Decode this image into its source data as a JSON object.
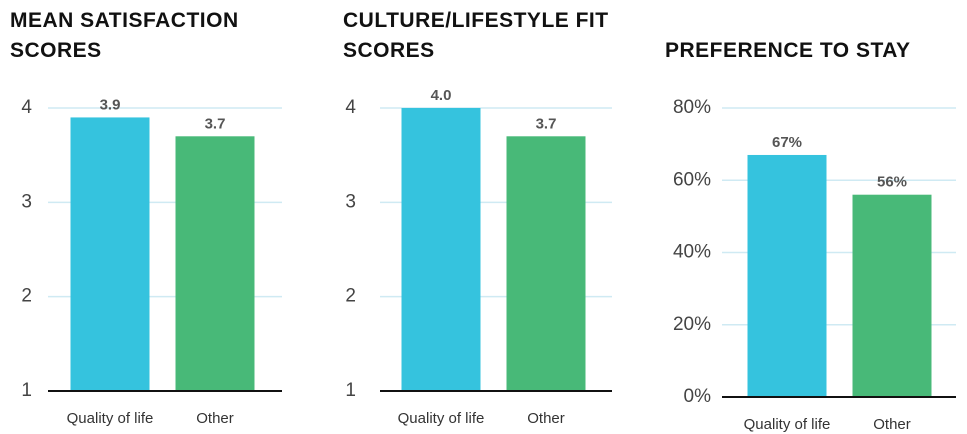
{
  "chart_data": [
    {
      "type": "bar",
      "title": "MEAN SATISFACTION SCORES",
      "categories": [
        "Quality of life",
        "Other"
      ],
      "colors": [
        "#35c3de",
        "#48b978"
      ],
      "values": [
        3.9,
        3.7
      ],
      "value_labels": [
        "3.9",
        "3.7"
      ],
      "ylim": [
        1,
        4
      ],
      "yticks": [
        1,
        2,
        3,
        4
      ],
      "grid": true
    },
    {
      "type": "bar",
      "title": "CULTURE/LIFESTYLE FIT SCORES",
      "categories": [
        "Quality of life",
        "Other"
      ],
      "colors": [
        "#35c3de",
        "#48b978"
      ],
      "values": [
        4.0,
        3.7
      ],
      "value_labels": [
        "4.0",
        "3.7"
      ],
      "ylim": [
        1,
        4
      ],
      "yticks": [
        1,
        2,
        3,
        4
      ],
      "grid": true
    },
    {
      "type": "bar",
      "title": "PREFERENCE TO STAY",
      "categories": [
        "Quality of life",
        "Other"
      ],
      "colors": [
        "#35c3de",
        "#48b978"
      ],
      "values": [
        67,
        56
      ],
      "value_labels": [
        "67%",
        "56%"
      ],
      "ylim": [
        0,
        80
      ],
      "yticks": [
        {
          "value": 0,
          "label": "0%"
        },
        {
          "value": 20,
          "label": "20%"
        },
        {
          "value": 40,
          "label": "40%"
        },
        {
          "value": 60,
          "label": "60%"
        },
        {
          "value": 80,
          "label": "80%"
        }
      ],
      "grid": true
    }
  ]
}
